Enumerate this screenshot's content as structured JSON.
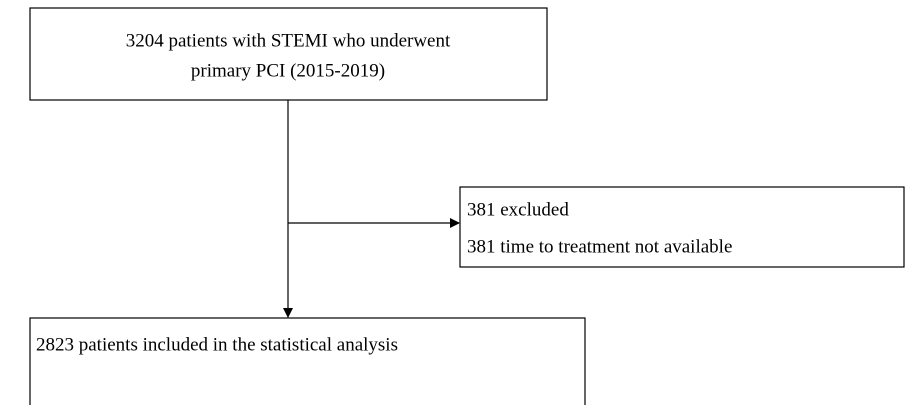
{
  "nodes": [
    {
      "lines": [
        "3204 patients with STEMI who underwent",
        "primary PCI (2015-2019)"
      ]
    },
    {
      "lines": [
        "381 excluded",
        "381 time to treatment not available"
      ]
    },
    {
      "lines": [
        "2823 patients included in the statistical analysis"
      ]
    }
  ]
}
